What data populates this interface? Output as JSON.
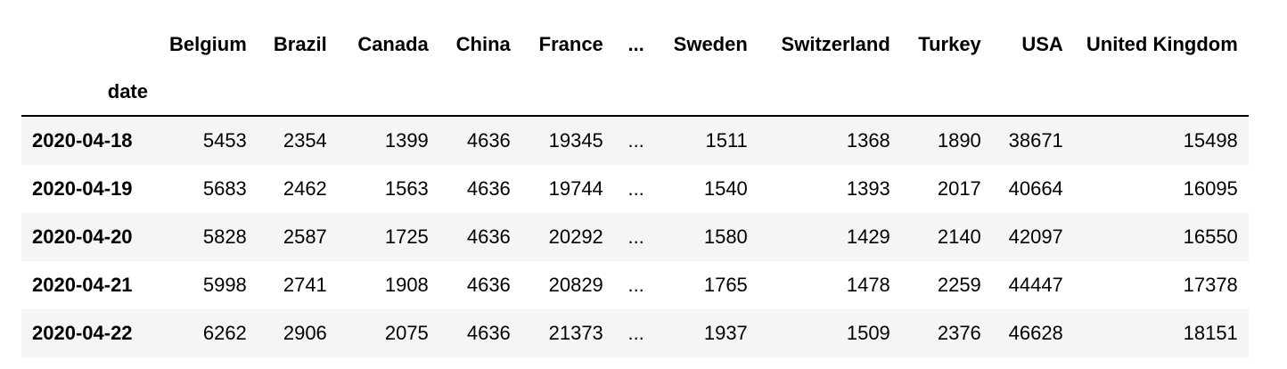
{
  "table": {
    "columns": [
      "Belgium",
      "Brazil",
      "Canada",
      "China",
      "France",
      "...",
      "Sweden",
      "Switzerland",
      "Turkey",
      "USA",
      "United Kingdom"
    ],
    "index_name": "date",
    "rows": [
      {
        "date": "2020-04-18",
        "values": [
          "5453",
          "2354",
          "1399",
          "4636",
          "19345",
          "...",
          "1511",
          "1368",
          "1890",
          "38671",
          "15498"
        ]
      },
      {
        "date": "2020-04-19",
        "values": [
          "5683",
          "2462",
          "1563",
          "4636",
          "19744",
          "...",
          "1540",
          "1393",
          "2017",
          "40664",
          "16095"
        ]
      },
      {
        "date": "2020-04-20",
        "values": [
          "5828",
          "2587",
          "1725",
          "4636",
          "20292",
          "...",
          "1580",
          "1429",
          "2140",
          "42097",
          "16550"
        ]
      },
      {
        "date": "2020-04-21",
        "values": [
          "5998",
          "2741",
          "1908",
          "4636",
          "20829",
          "...",
          "1765",
          "1478",
          "2259",
          "44447",
          "17378"
        ]
      },
      {
        "date": "2020-04-22",
        "values": [
          "6262",
          "2906",
          "2075",
          "4636",
          "21373",
          "...",
          "1937",
          "1509",
          "2376",
          "46628",
          "18151"
        ]
      }
    ]
  }
}
